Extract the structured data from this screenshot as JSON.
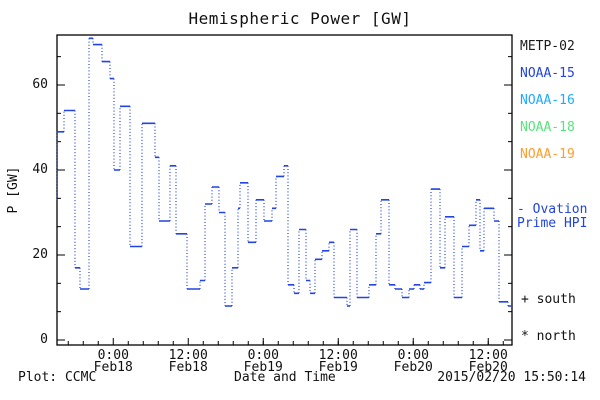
{
  "title": "Hemispheric Power [GW]",
  "y_axis": {
    "label": "P [GW]",
    "ticks": [
      0,
      20,
      40,
      60
    ]
  },
  "x_axis": {
    "label": "Date and Time"
  },
  "legend": {
    "satellites": [
      {
        "label": "METP-02",
        "color": "#1a1a1a"
      },
      {
        "label": "NOAA-15",
        "color": "#2244e0"
      },
      {
        "label": "NOAA-16",
        "color": "#22aaff"
      },
      {
        "label": "NOAA-18",
        "color": "#58e47c"
      },
      {
        "label": "NOAA-19",
        "color": "#ff9d2e"
      }
    ],
    "ovation_label": "- Ovation\nPrime HPI",
    "ovation_color": "#2244e0",
    "south_label": "+ south",
    "north_label": "* north"
  },
  "footer": {
    "plot_credit": "Plot: CCMC",
    "timestamp": "2015/02/20 15:50:14"
  },
  "chart_data": {
    "type": "line",
    "title": "Hemispheric Power [GW]",
    "xlabel": "Date and Time",
    "ylabel": "P [GW]",
    "ylim": [
      0,
      72
    ],
    "grid": false,
    "legend_position": "right",
    "line_color": "#2244e0",
    "line_style": "step plot: solid horizontal segments, dotted vertical connectors",
    "x_axis_span_hours": 72.8,
    "x_ticks": [
      {
        "h": 9,
        "time": "0:00",
        "date": "Feb18"
      },
      {
        "h": 21,
        "time": "12:00",
        "date": "Feb18"
      },
      {
        "h": 33,
        "time": "0:00",
        "date": "Feb19"
      },
      {
        "h": 45,
        "time": "12:00",
        "date": "Feb19"
      },
      {
        "h": 57,
        "time": "0:00",
        "date": "Feb20"
      },
      {
        "h": 69,
        "time": "12:00",
        "date": "Feb20"
      }
    ],
    "minor_x_tick_hours": 2.4,
    "y_ticks": [
      0,
      20,
      40,
      60
    ],
    "minor_y_tick_gw": 6.667,
    "series": [
      {
        "name": "Ovation Prime HPI",
        "steps_hours_gw": [
          [
            0,
            33
          ],
          [
            0.02,
            49
          ],
          [
            1.12,
            54
          ],
          [
            2.88,
            17
          ],
          [
            3.68,
            12
          ],
          [
            5.12,
            71
          ],
          [
            5.76,
            69.5
          ],
          [
            7.2,
            65.5
          ],
          [
            8.48,
            61.5
          ],
          [
            9.12,
            40
          ],
          [
            10.08,
            55
          ],
          [
            11.68,
            22
          ],
          [
            13.6,
            51
          ],
          [
            15.68,
            43
          ],
          [
            16.32,
            28
          ],
          [
            18.08,
            41
          ],
          [
            19.04,
            25
          ],
          [
            20.8,
            12
          ],
          [
            22.88,
            14
          ],
          [
            23.68,
            32
          ],
          [
            24.8,
            36
          ],
          [
            25.92,
            30
          ],
          [
            26.88,
            8
          ],
          [
            28,
            17
          ],
          [
            28.96,
            31
          ],
          [
            29.28,
            37
          ],
          [
            30.56,
            23
          ],
          [
            31.84,
            33
          ],
          [
            33.12,
            28
          ],
          [
            34.4,
            31
          ],
          [
            35.04,
            38.5
          ],
          [
            36.32,
            41
          ],
          [
            36.96,
            13
          ],
          [
            37.92,
            11
          ],
          [
            38.72,
            26
          ],
          [
            39.84,
            14
          ],
          [
            40.48,
            11
          ],
          [
            41.28,
            19
          ],
          [
            42.4,
            21
          ],
          [
            43.52,
            23
          ],
          [
            44.32,
            10
          ],
          [
            46.4,
            8
          ],
          [
            46.88,
            26
          ],
          [
            48,
            10
          ],
          [
            49.92,
            13
          ],
          [
            51.04,
            25
          ],
          [
            51.84,
            33
          ],
          [
            53.12,
            13
          ],
          [
            54.08,
            12
          ],
          [
            55.2,
            10
          ],
          [
            56.32,
            12
          ],
          [
            57.12,
            13
          ],
          [
            58.08,
            12
          ],
          [
            58.72,
            13.5
          ],
          [
            59.84,
            35.5
          ],
          [
            61.28,
            17
          ],
          [
            62.08,
            29
          ],
          [
            63.52,
            10
          ],
          [
            64.8,
            22
          ],
          [
            65.92,
            27
          ],
          [
            67.04,
            33
          ],
          [
            67.68,
            21
          ],
          [
            68.32,
            31
          ],
          [
            69.92,
            28
          ],
          [
            70.72,
            9
          ],
          [
            72.16,
            8
          ]
        ],
        "end_hour": 72.8
      }
    ]
  }
}
